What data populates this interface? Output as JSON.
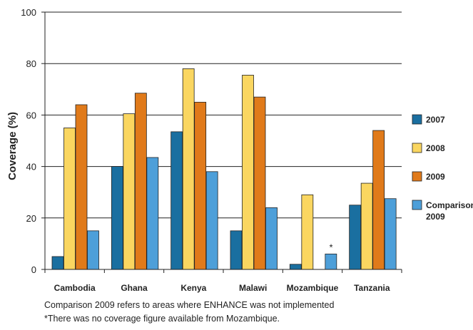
{
  "chart_data": {
    "type": "bar",
    "title": "",
    "xlabel": "",
    "ylabel": "Coverage (%)",
    "ylim": [
      0,
      100
    ],
    "yticks": [
      0,
      20,
      40,
      60,
      80,
      100
    ],
    "grid": "horizontal",
    "legend_position": "right",
    "categories": [
      "Cambodia",
      "Ghana",
      "Kenya",
      "Malawi",
      "Mozambique",
      "Tanzania"
    ],
    "series": [
      {
        "name": "2007",
        "color": "#1a6fa0",
        "values": [
          5,
          40,
          53.5,
          15,
          2,
          25
        ]
      },
      {
        "name": "2008",
        "color": "#fad660",
        "values": [
          55,
          60.5,
          78,
          75.5,
          29,
          33.5
        ]
      },
      {
        "name": "2009",
        "color": "#e07a1a",
        "values": [
          64,
          68.5,
          65,
          67,
          null,
          54
        ]
      },
      {
        "name": "Comparison 2009",
        "color": "#4d9fd9",
        "values": [
          15,
          43.5,
          38,
          24,
          6,
          27.5
        ]
      }
    ],
    "annotations": [
      {
        "category": "Mozambique",
        "text": "*"
      }
    ]
  },
  "notes": {
    "line1": "Comparison 2009 refers to areas where ENHANCE was not implemented",
    "line2": "*There was no coverage figure available from Mozambique."
  }
}
